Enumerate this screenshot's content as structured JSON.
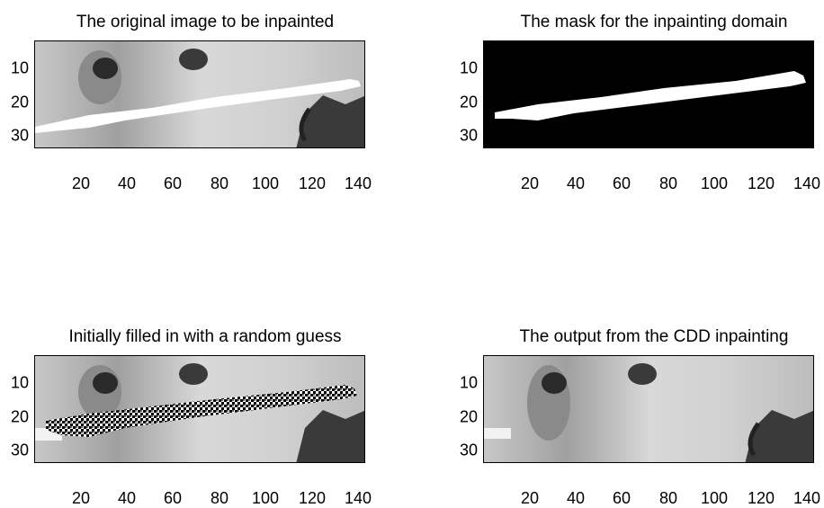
{
  "panels": [
    {
      "title": "The original image to be inpainted",
      "variant": "original"
    },
    {
      "title": "The mask for the inpainting domain",
      "variant": "mask"
    },
    {
      "title": "Initially filled in with a random guess",
      "variant": "random"
    },
    {
      "title": "The output from the CDD inpainting",
      "variant": "output"
    }
  ],
  "axes": {
    "x_ticks": [
      "20",
      "40",
      "60",
      "80",
      "100",
      "120",
      "140"
    ],
    "x_values": [
      20,
      40,
      60,
      80,
      100,
      120,
      140
    ],
    "x_range": [
      0.5,
      143.5
    ],
    "y_ticks": [
      "10",
      "20",
      "30"
    ],
    "y_values": [
      10,
      20,
      30
    ],
    "y_range": [
      0.5,
      32.5
    ]
  },
  "colors": {
    "mask_background": "#000000",
    "mask_region": "#ffffff",
    "face_light": "#d8d8d8",
    "face_dark": "#2a2a2a"
  }
}
